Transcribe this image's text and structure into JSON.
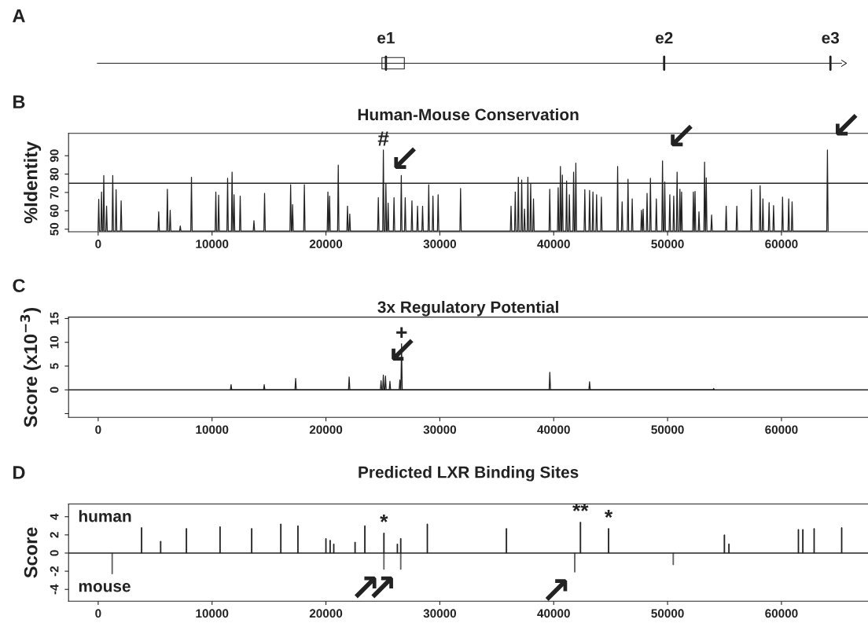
{
  "chart_data": [
    {
      "type": "other",
      "annotations": [
        "A",
        "e1",
        "e2",
        "e3"
      ]
    },
    {
      "type": "line",
      "title": "Human-Mouse Conservation",
      "ylabel": "%Identity",
      "xlim": [
        -2600,
        67600
      ],
      "xticks": [
        0,
        10000,
        20000,
        30000,
        40000,
        50000,
        60000
      ],
      "ylim": [
        48.6,
        102.2
      ],
      "yticks": [
        50,
        60,
        70,
        80,
        90
      ],
      "grid": false,
      "legend": false,
      "ref_lines": [
        {
          "axis": "y",
          "value": 75,
          "color": "#222222"
        }
      ],
      "series": [
        {
          "color": "#222222",
          "x": [
            -11,
            49,
            109,
            235,
            295,
            355,
            432,
            492,
            552,
            678,
            738,
            798,
            1219,
            1279,
            1339,
            1514,
            1574,
            1634,
            1957,
            2017,
            2077,
            5254,
            5314,
            5374,
            6016,
            6076,
            6136,
            6262,
            6322,
            6382,
            7148,
            7208,
            7268,
            8132,
            8192,
            8252,
            10272,
            10332,
            10392,
            10518,
            10578,
            10638,
            11305,
            11365,
            11425,
            11699,
            11759,
            11819,
            11871,
            11931,
            11991,
            12412,
            12472,
            12532,
            13618,
            13678,
            13738,
            14552,
            14612,
            14672,
            16840,
            16900,
            16960,
            17012,
            17072,
            17132,
            18046,
            18106,
            18166,
            20112,
            20172,
            20232,
            20260,
            20320,
            20380,
            21022,
            21082,
            21142,
            21834,
            21894,
            21954,
            22031,
            22091,
            22151,
            24540,
            24600,
            24660,
            24983,
            25043,
            25103,
            25204,
            25264,
            25324,
            25401,
            25461,
            25521,
            25918,
            25978,
            26038,
            26557,
            26617,
            26677,
            26902,
            26962,
            27022,
            27492,
            27552,
            27612,
            27984,
            28044,
            28104,
            28427,
            28487,
            28547,
            28968,
            29028,
            29088,
            29337,
            29397,
            29457,
            29792,
            29852,
            29912,
            31762,
            31822,
            31882,
            36195,
            36255,
            36315,
            36565,
            36625,
            36685,
            36836,
            36896,
            36956,
            37131,
            37191,
            37251,
            37378,
            37438,
            37498,
            37673,
            37733,
            37793,
            37919,
            37979,
            38039,
            38166,
            38226,
            38286,
            39594,
            39654,
            39714,
            40333,
            40393,
            40453,
            40530,
            40590,
            40650,
            40702,
            40762,
            40822,
            41072,
            41132,
            41192,
            41318,
            41378,
            41438,
            41688,
            41748,
            41808,
            41885,
            41945,
            42005,
            42673,
            42733,
            42793,
            43092,
            43152,
            43212,
            43387,
            43447,
            43507,
            43707,
            43767,
            43827,
            44126,
            44186,
            44246,
            45555,
            45615,
            45675,
            45949,
            46009,
            46069,
            46466,
            46526,
            46586,
            46835,
            46895,
            46955,
            47648,
            47708,
            47768,
            47796,
            47856,
            47916,
            48140,
            48200,
            48260,
            48436,
            48496,
            48556,
            48953,
            49013,
            49073,
            49496,
            49556,
            49616,
            49693,
            49753,
            49813,
            50136,
            50196,
            50256,
            50481,
            50541,
            50601,
            50777,
            50837,
            50897,
            51023,
            51083,
            51143,
            51170,
            51230,
            51290,
            52205,
            52265,
            52325,
            52353,
            52413,
            52473,
            52697,
            52757,
            52817,
            53190,
            53250,
            53310,
            53338,
            53398,
            53458,
            53806,
            53866,
            53926,
            55086,
            55146,
            55206,
            56022,
            56082,
            56142,
            57303,
            57363,
            57423,
            58067,
            58127,
            58187,
            58313,
            58373,
            58433,
            58855,
            58915,
            58975,
            59249,
            59309,
            59369,
            60037,
            60097,
            60157,
            60579,
            60639,
            60699,
            60875,
            60935,
            60995,
            63978,
            64038,
            64098
          ],
          "values": [
            49,
            66.3,
            49,
            49,
            70.3,
            49,
            49,
            79.2,
            49,
            49,
            62.6,
            49,
            49,
            79.2,
            49,
            49,
            71.5,
            49,
            49,
            65.4,
            49,
            49,
            59.5,
            49,
            49,
            71.8,
            49,
            49,
            60.3,
            49,
            49,
            51.8,
            49,
            49,
            78.3,
            49,
            49,
            70.3,
            49,
            49,
            68.5,
            49,
            49,
            77.7,
            49,
            49,
            81.1,
            49,
            49,
            68.8,
            49,
            49,
            68,
            49,
            49,
            54.6,
            49,
            49,
            69.5,
            49,
            49,
            74.2,
            49,
            49,
            63.4,
            49,
            49,
            74.2,
            49,
            49,
            70.3,
            49,
            49,
            68,
            49,
            49,
            84.9,
            49,
            49,
            62.6,
            49,
            49,
            58.3,
            49,
            49,
            67.2,
            49,
            49,
            93.1,
            49,
            49,
            74.9,
            49,
            49,
            64.2,
            49,
            49,
            67.2,
            49,
            49,
            79.2,
            49,
            49,
            67.2,
            49,
            49,
            65.4,
            49,
            49,
            62.6,
            49,
            49,
            62.6,
            49,
            49,
            74.2,
            49,
            49,
            68,
            49,
            49,
            68.8,
            49,
            49,
            72.2,
            49,
            49,
            62.6,
            49,
            49,
            70.3,
            49,
            49,
            78.3,
            49,
            49,
            76.8,
            49,
            49,
            61,
            49,
            49,
            78.3,
            49,
            49,
            74.9,
            49,
            49,
            66.5,
            49,
            49,
            71.8,
            49,
            49,
            72.6,
            49,
            49,
            84.2,
            49,
            49,
            79.5,
            49,
            49,
            76.2,
            49,
            49,
            68.8,
            49,
            49,
            81.1,
            49,
            49,
            86,
            49,
            49,
            71.5,
            49,
            49,
            71.1,
            49,
            49,
            70.3,
            49,
            49,
            68.8,
            49,
            49,
            67.5,
            49,
            49,
            84.2,
            49,
            49,
            64.9,
            49,
            49,
            77.2,
            49,
            49,
            66.5,
            49,
            49,
            60.3,
            49,
            49,
            61,
            49,
            49,
            69.5,
            49,
            49,
            77.7,
            49,
            49,
            66.5,
            49,
            49,
            87.2,
            49,
            49,
            75.7,
            49,
            49,
            68.8,
            49,
            49,
            68,
            49,
            49,
            81.1,
            49,
            49,
            71.8,
            49,
            49,
            70.3,
            49,
            49,
            70.3,
            49,
            49,
            70.6,
            49,
            49,
            59.5,
            49,
            49,
            86.5,
            49,
            49,
            78,
            49,
            49,
            57.7,
            49,
            49,
            62.6,
            49,
            49,
            62.6,
            49,
            49,
            71.5,
            49,
            49,
            73.7,
            49,
            49,
            66.5,
            49,
            49,
            64.5,
            49,
            49,
            62.9,
            49,
            49,
            67.5,
            49,
            49,
            66.5,
            49,
            49,
            64.9,
            49,
            49,
            93.1,
            49
          ]
        }
      ],
      "annotations": [
        "B",
        {
          "text": "#",
          "x": 25043,
          "y": 93.1
        },
        {
          "text": "↙",
          "x": 25264,
          "y": 74.9
        },
        {
          "text": "↙",
          "x": 49556,
          "y": 87.2
        },
        {
          "text": "↙",
          "x": 64038,
          "y": 93.1
        }
      ]
    },
    {
      "type": "line",
      "title": "3x Regulatory Potential",
      "ylabel": "Score (x10$^{−3}$)",
      "xlim": [
        -2600,
        67600
      ],
      "xticks": [
        0,
        10000,
        20000,
        30000,
        40000,
        50000,
        60000
      ],
      "ylim": [
        -5.8,
        15.3
      ],
      "yticks": [
        {
          "value": -5,
          "label": null
        },
        0,
        5,
        10,
        15
      ],
      "grid": false,
      "legend": false,
      "ref_lines": [
        {
          "axis": "y",
          "value": 0,
          "color": "#222222"
        }
      ],
      "series": [
        {
          "color": "#222222",
          "x": [
            11610,
            11670,
            11730,
            14520,
            14580,
            14640,
            17280,
            17340,
            17400,
            21980,
            22040,
            22100,
            24780,
            24840,
            24900,
            24980,
            25040,
            25100,
            25170,
            25230,
            25290,
            25560,
            25620,
            25680,
            26430,
            26490,
            26550,
            26580,
            26640,
            26700,
            39600,
            39660,
            39720,
            43090,
            43150,
            43210,
            53990,
            54050,
            54110
          ],
          "values": [
            0,
            1.1,
            0,
            0,
            1.1,
            0,
            0,
            2.4,
            0,
            0,
            2.7,
            0,
            0,
            1.9,
            0,
            0,
            3.1,
            0,
            0,
            2.9,
            0,
            0,
            1.8,
            0,
            0,
            2.1,
            0,
            0,
            9.7,
            0,
            0,
            3.7,
            0,
            0,
            1.7,
            0,
            0,
            0.3,
            0
          ]
        }
      ],
      "annotations": [
        "C",
        {
          "text": "+",
          "x": 26640,
          "y": 9.7
        },
        {
          "text": "↙",
          "x": 25040,
          "y": 3.1
        }
      ]
    },
    {
      "type": "bar",
      "title": "Predicted LXR Binding Sites",
      "ylabel": "Score",
      "xlim": [
        -2600,
        67600
      ],
      "xticks": [
        0,
        10000,
        20000,
        30000,
        40000,
        50000,
        60000
      ],
      "ylim": [
        -5.3,
        5.4
      ],
      "yticks": [
        -4,
        -2,
        0,
        2,
        4
      ],
      "grid": false,
      "legend": false,
      "ref_lines": [
        {
          "axis": "y",
          "value": 0,
          "color": "#222222"
        }
      ],
      "series": [
        {
          "color": "#5a5a5a",
          "x": [
            1230,
            25092,
            26568,
            41850,
            50500
          ],
          "values": [
            -2.3,
            -1.8,
            -1.8,
            -2.1,
            -1.3
          ]
        },
        {
          "color": "#1a1a1a",
          "x": [
            3813,
            5486,
            7749,
            10701,
            13481,
            16039,
            17540,
            20000,
            20369,
            20689,
            22558,
            23419,
            25092,
            26273,
            26568,
            28905,
            35850,
            42350,
            44820,
            54990,
            55390,
            61490,
            61880,
            62870,
            65290
          ],
          "values": [
            2.8,
            1.3,
            2.7,
            2.9,
            2.7,
            3.2,
            3.0,
            1.6,
            1.4,
            1.0,
            1.2,
            3.0,
            2.2,
            1.0,
            1.6,
            3.2,
            2.7,
            3.4,
            2.7,
            2.0,
            1.0,
            2.6,
            2.6,
            2.7,
            2.8
          ]
        }
      ],
      "annotations": [
        "D",
        "human",
        "mouse",
        {
          "text": "*",
          "x": 25092,
          "y": 2.2
        },
        {
          "text": "**",
          "x": 42350,
          "y": 3.4
        },
        {
          "text": "*",
          "x": 44820,
          "y": 2.7
        },
        {
          "text": "↗",
          "x": 25092,
          "y": -1.8
        },
        {
          "text": "↗",
          "x": 26568,
          "y": -1.8
        },
        {
          "text": "↗",
          "x": 41850,
          "y": -2.1
        }
      ]
    }
  ]
}
